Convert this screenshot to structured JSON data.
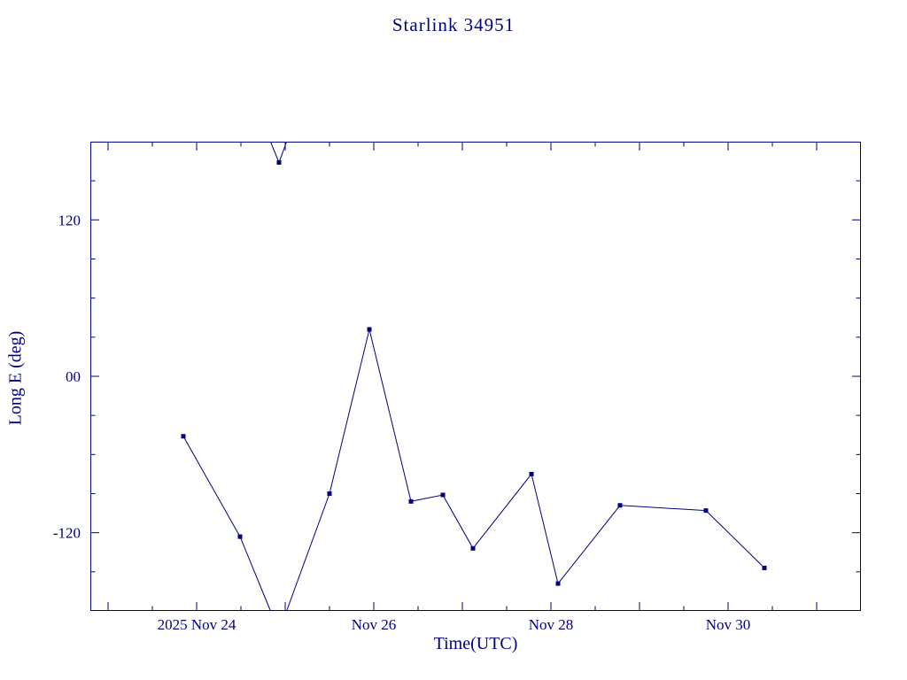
{
  "page": {
    "background": "#ffffff",
    "ink_color": "#000080"
  },
  "chart_data": {
    "type": "line",
    "title": "Starlink 34951",
    "xlabel": "Time(UTC)",
    "ylabel": "Long E (deg)",
    "x_unit": "day of November 2025",
    "xlim": [
      22.8,
      31.5
    ],
    "ylim": [
      -180,
      180
    ],
    "grid": false,
    "legend": null,
    "line_color": "#000080",
    "marker": "filled-square",
    "wrap_at": 180,
    "x_axis": {
      "tick_labels": [
        {
          "value": 24,
          "label": "2025 Nov 24"
        },
        {
          "value": 26,
          "label": "Nov 26"
        },
        {
          "value": 28,
          "label": "Nov 28"
        },
        {
          "value": 30,
          "label": "Nov 30"
        }
      ],
      "major_ticks": [
        23,
        24,
        25,
        26,
        27,
        28,
        29,
        30,
        31
      ],
      "minor_tick_step": 0.5
    },
    "y_axis": {
      "tick_labels": [
        {
          "value": 120,
          "label": "120"
        },
        {
          "value": 0,
          "label": "00"
        },
        {
          "value": -120,
          "label": "-120"
        }
      ],
      "major_ticks": [
        -120,
        0,
        120
      ],
      "minor_tick_step": 30
    },
    "series": [
      {
        "name": "Starlink 34951 longitude east",
        "x": [
          23.85,
          24.49,
          24.93,
          25.5,
          25.95,
          26.42,
          26.78,
          27.12,
          27.78,
          28.08,
          28.78,
          29.75,
          30.41
        ],
        "y": [
          -46,
          -123,
          164,
          -90,
          36,
          -96,
          -91,
          -132,
          -75,
          -159,
          -99,
          -103,
          -147
        ]
      }
    ]
  }
}
